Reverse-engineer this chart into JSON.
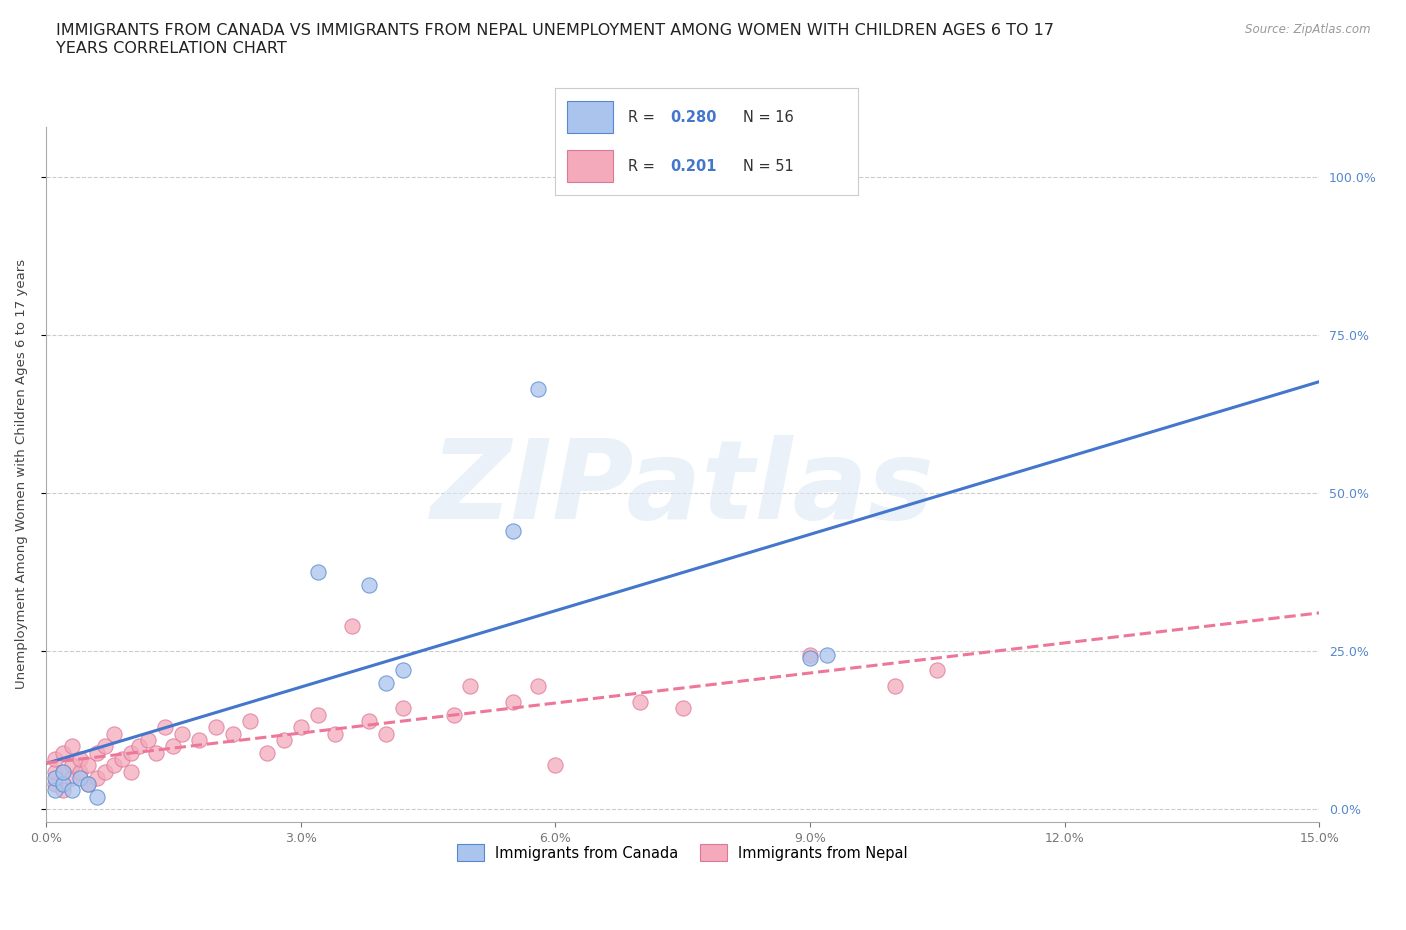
{
  "title": "IMMIGRANTS FROM CANADA VS IMMIGRANTS FROM NEPAL UNEMPLOYMENT AMONG WOMEN WITH CHILDREN AGES 6 TO 17\nYEARS CORRELATION CHART",
  "source": "Source: ZipAtlas.com",
  "ylabel": "Unemployment Among Women with Children Ages 6 to 17 years",
  "xlim": [
    0.0,
    0.15
  ],
  "ylim": [
    -0.02,
    1.08
  ],
  "x_ticks": [
    0.0,
    0.03,
    0.06,
    0.09,
    0.12,
    0.15
  ],
  "x_tick_labels": [
    "0.0%",
    "3.0%",
    "6.0%",
    "9.0%",
    "12.0%",
    "15.0%"
  ],
  "y_ticks": [
    0.0,
    0.25,
    0.5,
    0.75,
    1.0
  ],
  "y_tick_labels": [
    "0.0%",
    "25.0%",
    "50.0%",
    "75.0%",
    "100.0%"
  ],
  "canada_x": [
    0.001,
    0.001,
    0.002,
    0.002,
    0.003,
    0.004,
    0.005,
    0.006,
    0.032,
    0.038,
    0.04,
    0.042,
    0.055,
    0.058,
    0.09,
    0.092
  ],
  "canada_y": [
    0.03,
    0.05,
    0.04,
    0.06,
    0.03,
    0.05,
    0.04,
    0.02,
    0.375,
    0.355,
    0.2,
    0.22,
    0.44,
    0.665,
    0.24,
    0.245
  ],
  "nepal_x": [
    0.001,
    0.001,
    0.001,
    0.002,
    0.002,
    0.002,
    0.003,
    0.003,
    0.003,
    0.004,
    0.004,
    0.005,
    0.005,
    0.006,
    0.006,
    0.007,
    0.007,
    0.008,
    0.008,
    0.009,
    0.01,
    0.01,
    0.011,
    0.012,
    0.013,
    0.014,
    0.015,
    0.016,
    0.018,
    0.02,
    0.022,
    0.024,
    0.026,
    0.028,
    0.03,
    0.032,
    0.034,
    0.036,
    0.038,
    0.04,
    0.042,
    0.048,
    0.05,
    0.055,
    0.058,
    0.06,
    0.07,
    0.075,
    0.09,
    0.1,
    0.105
  ],
  "nepal_y": [
    0.04,
    0.06,
    0.08,
    0.03,
    0.06,
    0.09,
    0.05,
    0.07,
    0.1,
    0.06,
    0.08,
    0.04,
    0.07,
    0.05,
    0.09,
    0.06,
    0.1,
    0.07,
    0.12,
    0.08,
    0.06,
    0.09,
    0.1,
    0.11,
    0.09,
    0.13,
    0.1,
    0.12,
    0.11,
    0.13,
    0.12,
    0.14,
    0.09,
    0.11,
    0.13,
    0.15,
    0.12,
    0.29,
    0.14,
    0.12,
    0.16,
    0.15,
    0.195,
    0.17,
    0.195,
    0.07,
    0.17,
    0.16,
    0.245,
    0.195,
    0.22
  ],
  "canada_color": "#aac4ee",
  "canada_edge_color": "#5588cc",
  "nepal_color": "#f4aabb",
  "nepal_edge_color": "#dd7799",
  "canada_line_color": "#4477cc",
  "nepal_line_color": "#ee7799",
  "canada_R": 0.28,
  "canada_N": 16,
  "nepal_R": 0.201,
  "nepal_N": 51,
  "watermark": "ZIPatlas",
  "background_color": "#ffffff",
  "title_fontsize": 11.5,
  "ylabel_fontsize": 9.5,
  "tick_fontsize": 9,
  "legend_fontsize": 10.5,
  "right_tick_color": "#5588cc"
}
